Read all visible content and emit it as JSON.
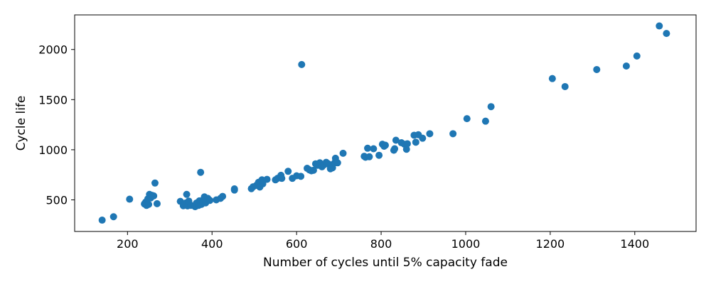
{
  "chart_data": {
    "type": "scatter",
    "title": "",
    "xlabel": "Number of cycles until 5% capacity fade",
    "ylabel": "Cycle life",
    "xlim": [
      75,
      1545
    ],
    "ylim": [
      185,
      2345
    ],
    "xticks": [
      200,
      400,
      600,
      800,
      1000,
      1200,
      1400
    ],
    "yticks": [
      500,
      1000,
      1500,
      2000
    ],
    "grid": false,
    "legend": "none",
    "colors": {
      "marker": "#1f77b4",
      "axis": "#000000",
      "background": "#ffffff"
    },
    "series": [
      {
        "points": [
          [
            140,
            298
          ],
          [
            167,
            332
          ],
          [
            205,
            507
          ],
          [
            240,
            460
          ],
          [
            243,
            478
          ],
          [
            245,
            445
          ],
          [
            248,
            510
          ],
          [
            250,
            455
          ],
          [
            252,
            555
          ],
          [
            255,
            520
          ],
          [
            258,
            545
          ],
          [
            262,
            540
          ],
          [
            265,
            668
          ],
          [
            270,
            462
          ],
          [
            325,
            485
          ],
          [
            332,
            442
          ],
          [
            337,
            468
          ],
          [
            340,
            555
          ],
          [
            342,
            440
          ],
          [
            345,
            488
          ],
          [
            350,
            445
          ],
          [
            360,
            432
          ],
          [
            363,
            468
          ],
          [
            368,
            445
          ],
          [
            370,
            490
          ],
          [
            373,
            775
          ],
          [
            375,
            455
          ],
          [
            378,
            482
          ],
          [
            380,
            505
          ],
          [
            382,
            530
          ],
          [
            385,
            470
          ],
          [
            390,
            515
          ],
          [
            395,
            495
          ],
          [
            410,
            500
          ],
          [
            420,
            515
          ],
          [
            425,
            535
          ],
          [
            453,
            598
          ],
          [
            453,
            610
          ],
          [
            493,
            612
          ],
          [
            497,
            630
          ],
          [
            505,
            645
          ],
          [
            510,
            675
          ],
          [
            513,
            628
          ],
          [
            518,
            700
          ],
          [
            520,
            660
          ],
          [
            530,
            705
          ],
          [
            550,
            700
          ],
          [
            555,
            715
          ],
          [
            563,
            745
          ],
          [
            565,
            715
          ],
          [
            580,
            785
          ],
          [
            590,
            715
          ],
          [
            600,
            740
          ],
          [
            610,
            735
          ],
          [
            612,
            1850
          ],
          [
            625,
            815
          ],
          [
            630,
            800
          ],
          [
            635,
            790
          ],
          [
            640,
            795
          ],
          [
            645,
            860
          ],
          [
            650,
            845
          ],
          [
            655,
            870
          ],
          [
            660,
            830
          ],
          [
            665,
            850
          ],
          [
            670,
            875
          ],
          [
            675,
            860
          ],
          [
            680,
            810
          ],
          [
            685,
            820
          ],
          [
            690,
            870
          ],
          [
            692,
            915
          ],
          [
            697,
            870
          ],
          [
            710,
            965
          ],
          [
            760,
            935
          ],
          [
            763,
            925
          ],
          [
            768,
            1015
          ],
          [
            772,
            930
          ],
          [
            782,
            1010
          ],
          [
            795,
            945
          ],
          [
            803,
            1055
          ],
          [
            807,
            1035
          ],
          [
            810,
            1045
          ],
          [
            830,
            995
          ],
          [
            832,
            1010
          ],
          [
            835,
            1095
          ],
          [
            848,
            1070
          ],
          [
            855,
            1055
          ],
          [
            860,
            1005
          ],
          [
            862,
            1060
          ],
          [
            878,
            1145
          ],
          [
            882,
            1075
          ],
          [
            888,
            1150
          ],
          [
            898,
            1115
          ],
          [
            915,
            1160
          ],
          [
            970,
            1160
          ],
          [
            1003,
            1310
          ],
          [
            1047,
            1285
          ],
          [
            1060,
            1430
          ],
          [
            1205,
            1710
          ],
          [
            1235,
            1630
          ],
          [
            1310,
            1800
          ],
          [
            1380,
            1835
          ],
          [
            1405,
            1935
          ],
          [
            1458,
            2235
          ],
          [
            1475,
            2160
          ]
        ]
      }
    ]
  }
}
